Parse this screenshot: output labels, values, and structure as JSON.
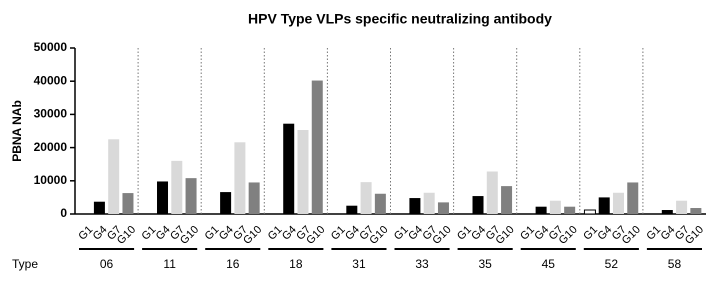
{
  "chart_data": {
    "type": "bar",
    "title": "HPV Type VLPs specific neutralizing antibody",
    "y_label": "PBNA NAb",
    "x_label": "Type",
    "categories": [
      "06",
      "11",
      "16",
      "18",
      "31",
      "33",
      "35",
      "45",
      "52",
      "58"
    ],
    "series": [
      {
        "name": "G1",
        "color": "#ffffff",
        "values": [
          0,
          0,
          0,
          0,
          0,
          0,
          0,
          0,
          1200,
          0
        ]
      },
      {
        "name": "G4",
        "color": "#000000",
        "values": [
          3700,
          9800,
          6600,
          27200,
          2500,
          4800,
          5400,
          2200,
          5000,
          1200
        ]
      },
      {
        "name": "G7",
        "color": "#d9d9d9",
        "values": [
          22500,
          16000,
          21600,
          25300,
          9600,
          6400,
          12800,
          4000,
          6400,
          4000
        ]
      },
      {
        "name": "G10",
        "color": "#808080",
        "values": [
          6300,
          10800,
          9500,
          40200,
          6100,
          3500,
          8400,
          2200,
          9500,
          1800
        ]
      }
    ],
    "ylim": [
      0,
      50000
    ],
    "yticks": [
      0,
      10000,
      20000,
      30000,
      40000,
      50000
    ]
  }
}
